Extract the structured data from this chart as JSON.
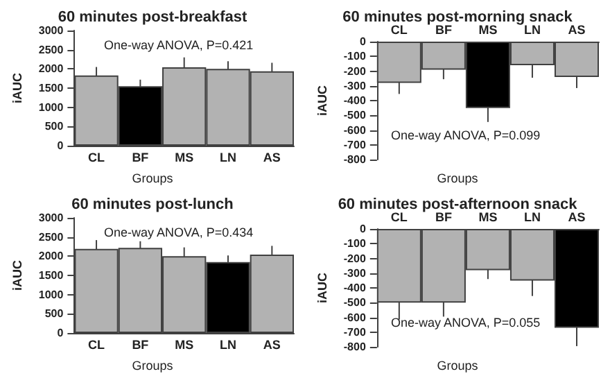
{
  "chart_data": [
    {
      "type": "bar",
      "title": "60 minutes post-breakfast",
      "xlabel": "Groups",
      "ylabel": "iAUC",
      "categories": [
        "CL",
        "BF",
        "MS",
        "LN",
        "AS"
      ],
      "values": [
        1830,
        1550,
        2040,
        2000,
        1940
      ],
      "errors": [
        220,
        170,
        260,
        200,
        220
      ],
      "colors": [
        "#b2b2b2",
        "#000000",
        "#b2b2b2",
        "#b2b2b2",
        "#b2b2b2"
      ],
      "ylim": [
        0,
        3000
      ],
      "yticks": [
        0,
        500,
        1000,
        1500,
        2000,
        2500,
        3000
      ],
      "annotations": [
        "One-way ANOVA, P=0.421"
      ]
    },
    {
      "type": "bar",
      "title": "60 minutes post-morning snack",
      "xlabel": "Groups",
      "ylabel": "iAUC",
      "categories": [
        "CL",
        "BF",
        "MS",
        "LN",
        "AS"
      ],
      "values": [
        -280,
        -190,
        -450,
        -160,
        -240
      ],
      "errors": [
        75,
        65,
        95,
        85,
        75
      ],
      "colors": [
        "#b2b2b2",
        "#b2b2b2",
        "#000000",
        "#b2b2b2",
        "#b2b2b2"
      ],
      "ylim": [
        -800,
        0
      ],
      "yticks": [
        -800,
        -700,
        -600,
        -500,
        -400,
        -300,
        -200,
        -100,
        0
      ],
      "annotations": [
        "One-way ANOVA, P=0.099"
      ]
    },
    {
      "type": "bar",
      "title": "60 minutes post-lunch",
      "xlabel": "Groups",
      "ylabel": "iAUC",
      "categories": [
        "CL",
        "BF",
        "MS",
        "LN",
        "AS"
      ],
      "values": [
        2190,
        2220,
        2000,
        1850,
        2040
      ],
      "errors": [
        230,
        170,
        230,
        170,
        230
      ],
      "colors": [
        "#b2b2b2",
        "#b2b2b2",
        "#b2b2b2",
        "#000000",
        "#b2b2b2"
      ],
      "ylim": [
        0,
        3000
      ],
      "yticks": [
        0,
        500,
        1000,
        1500,
        2000,
        2500,
        3000
      ],
      "annotations": [
        "One-way ANOVA, P=0.434"
      ]
    },
    {
      "type": "bar",
      "title": "60 minutes post-afternoon snack",
      "xlabel": "Groups",
      "ylabel": "iAUC",
      "categories": [
        "CL",
        "BF",
        "MS",
        "LN",
        "AS"
      ],
      "values": [
        -500,
        -500,
        -280,
        -350,
        -670
      ],
      "errors": [
        115,
        95,
        60,
        105,
        125
      ],
      "colors": [
        "#b2b2b2",
        "#b2b2b2",
        "#b2b2b2",
        "#b2b2b2",
        "#000000"
      ],
      "ylim": [
        -800,
        0
      ],
      "yticks": [
        -800,
        -700,
        -600,
        -500,
        -400,
        -300,
        -200,
        -100,
        0
      ],
      "annotations": [
        "One-way ANOVA, P=0.055"
      ]
    }
  ]
}
